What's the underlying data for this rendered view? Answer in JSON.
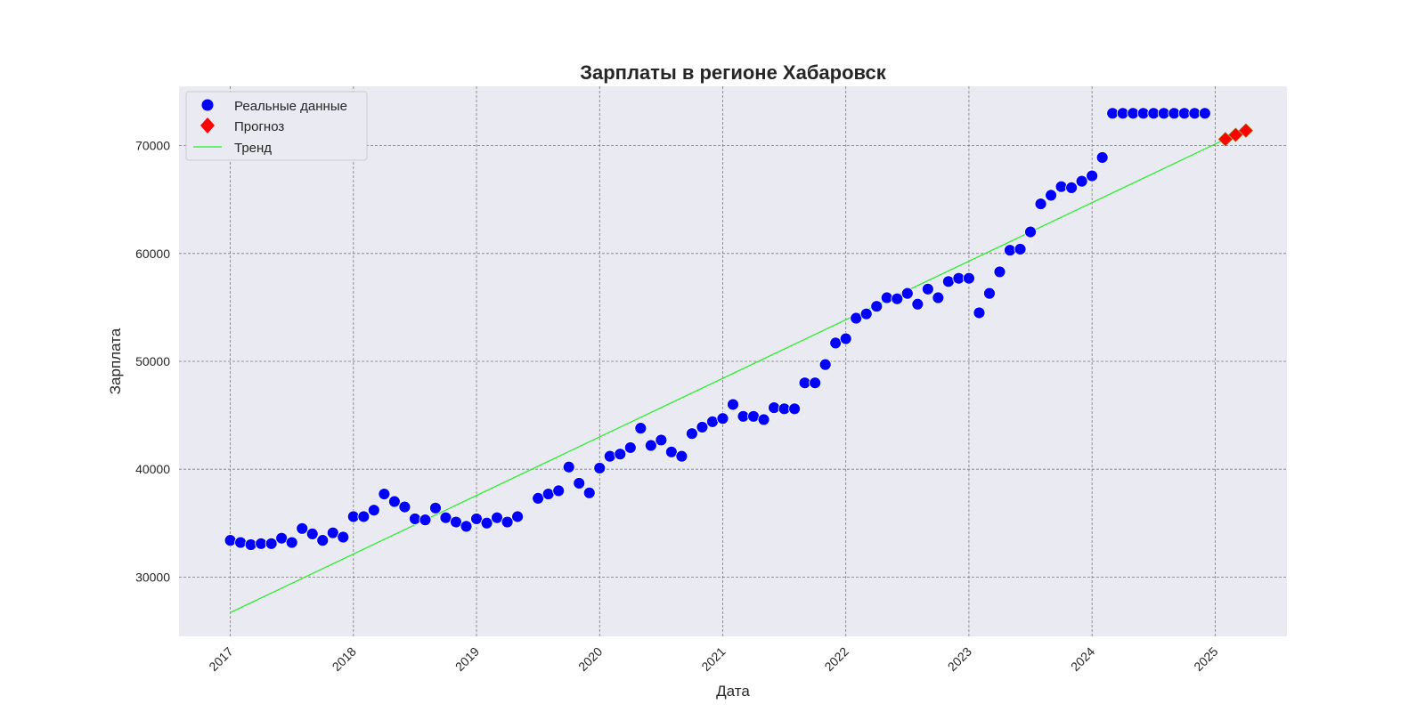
{
  "chart_data": {
    "type": "scatter",
    "title": "Зарплаты в регионе Хабаровск",
    "xlabel": "Дата",
    "ylabel": "Зарплата",
    "xlim": [
      "2016-08-01",
      "2025-08-01"
    ],
    "ylim": [
      24500,
      75500
    ],
    "x_ticks": [
      "2017",
      "2018",
      "2019",
      "2020",
      "2021",
      "2022",
      "2023",
      "2024",
      "2025"
    ],
    "y_ticks": [
      30000,
      40000,
      50000,
      60000,
      70000
    ],
    "grid": true,
    "legend_position": "top-left",
    "colors": {
      "background": "#eaeaf2",
      "actual": "#0000ff",
      "forecast": "#ff0000",
      "trend": "#22ee22"
    },
    "series": [
      {
        "name": "Реальные данные",
        "kind": "scatter",
        "marker": "circle",
        "points": [
          [
            "2017-01",
            33400
          ],
          [
            "2017-02",
            33200
          ],
          [
            "2017-03",
            33000
          ],
          [
            "2017-04",
            33100
          ],
          [
            "2017-05",
            33100
          ],
          [
            "2017-06",
            33600
          ],
          [
            "2017-07",
            33200
          ],
          [
            "2017-08",
            34500
          ],
          [
            "2017-09",
            34000
          ],
          [
            "2017-10",
            33400
          ],
          [
            "2017-11",
            34100
          ],
          [
            "2017-12",
            33700
          ],
          [
            "2018-01",
            35600
          ],
          [
            "2018-02",
            35600
          ],
          [
            "2018-03",
            36200
          ],
          [
            "2018-04",
            37700
          ],
          [
            "2018-05",
            37000
          ],
          [
            "2018-06",
            36500
          ],
          [
            "2018-07",
            35400
          ],
          [
            "2018-08",
            35300
          ],
          [
            "2018-09",
            36400
          ],
          [
            "2018-10",
            35500
          ],
          [
            "2018-11",
            35100
          ],
          [
            "2018-12",
            34700
          ],
          [
            "2019-01",
            35400
          ],
          [
            "2019-02",
            35000
          ],
          [
            "2019-03",
            35500
          ],
          [
            "2019-04",
            35100
          ],
          [
            "2019-05",
            35600
          ],
          [
            "2019-07",
            37300
          ],
          [
            "2019-08",
            37700
          ],
          [
            "2019-09",
            38000
          ],
          [
            "2019-10",
            40200
          ],
          [
            "2019-11",
            38700
          ],
          [
            "2019-12",
            37800
          ],
          [
            "2020-01",
            40100
          ],
          [
            "2020-02",
            41200
          ],
          [
            "2020-03",
            41400
          ],
          [
            "2020-04",
            42000
          ],
          [
            "2020-05",
            43800
          ],
          [
            "2020-06",
            42200
          ],
          [
            "2020-07",
            42700
          ],
          [
            "2020-08",
            41600
          ],
          [
            "2020-09",
            41200
          ],
          [
            "2020-10",
            43300
          ],
          [
            "2020-11",
            43900
          ],
          [
            "2020-12",
            44400
          ],
          [
            "2021-01",
            44700
          ],
          [
            "2021-02",
            46000
          ],
          [
            "2021-03",
            44900
          ],
          [
            "2021-04",
            44900
          ],
          [
            "2021-05",
            44600
          ],
          [
            "2021-06",
            45700
          ],
          [
            "2021-07",
            45600
          ],
          [
            "2021-08",
            45600
          ],
          [
            "2021-09",
            48000
          ],
          [
            "2021-10",
            48000
          ],
          [
            "2021-11",
            49700
          ],
          [
            "2021-12",
            51700
          ],
          [
            "2022-01",
            52100
          ],
          [
            "2022-02",
            54000
          ],
          [
            "2022-03",
            54400
          ],
          [
            "2022-04",
            55100
          ],
          [
            "2022-05",
            55900
          ],
          [
            "2022-06",
            55800
          ],
          [
            "2022-07",
            56300
          ],
          [
            "2022-08",
            55300
          ],
          [
            "2022-09",
            56700
          ],
          [
            "2022-10",
            55900
          ],
          [
            "2022-11",
            57400
          ],
          [
            "2022-12",
            57700
          ],
          [
            "2023-01",
            57700
          ],
          [
            "2023-02",
            54500
          ],
          [
            "2023-03",
            56300
          ],
          [
            "2023-04",
            58300
          ],
          [
            "2023-05",
            60300
          ],
          [
            "2023-06",
            60400
          ],
          [
            "2023-07",
            62000
          ],
          [
            "2023-08",
            64600
          ],
          [
            "2023-09",
            65400
          ],
          [
            "2023-10",
            66200
          ],
          [
            "2023-11",
            66100
          ],
          [
            "2023-12",
            66700
          ],
          [
            "2024-01",
            67200
          ],
          [
            "2024-02",
            68900
          ],
          [
            "2024-03",
            73000
          ],
          [
            "2024-04",
            73000
          ],
          [
            "2024-05",
            73000
          ],
          [
            "2024-06",
            73000
          ],
          [
            "2024-07",
            73000
          ],
          [
            "2024-08",
            73000
          ],
          [
            "2024-09",
            73000
          ],
          [
            "2024-10",
            73000
          ],
          [
            "2024-11",
            73000
          ],
          [
            "2024-12",
            73000
          ]
        ]
      },
      {
        "name": "Прогноз",
        "kind": "scatter",
        "marker": "diamond",
        "points": [
          [
            "2025-02",
            70600
          ],
          [
            "2025-03",
            71000
          ],
          [
            "2025-04",
            71400
          ]
        ]
      },
      {
        "name": "Тренд",
        "kind": "line",
        "points": [
          [
            "2017-01",
            26700
          ],
          [
            "2025-02",
            70600
          ]
        ]
      }
    ]
  }
}
